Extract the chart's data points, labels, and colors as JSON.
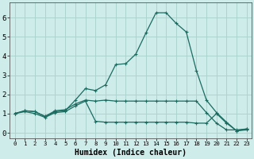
{
  "background_color": "#ceecea",
  "grid_color": "#aed4d0",
  "line_color": "#1a6b60",
  "xlabel": "Humidex (Indice chaleur)",
  "xlabel_fontsize": 7,
  "ytick_labels": [
    "0",
    "1",
    "2",
    "3",
    "4",
    "5",
    "6"
  ],
  "ytick_vals": [
    0,
    1,
    2,
    3,
    4,
    5,
    6
  ],
  "xtick_vals": [
    0,
    1,
    2,
    3,
    4,
    5,
    6,
    7,
    8,
    9,
    10,
    11,
    12,
    13,
    14,
    15,
    16,
    17,
    18,
    19,
    20,
    21,
    22,
    23
  ],
  "xlim": [
    -0.5,
    23.5
  ],
  "ylim": [
    -0.3,
    6.8
  ],
  "series": [
    [
      1.0,
      1.15,
      1.1,
      0.85,
      1.1,
      1.15,
      1.7,
      2.3,
      2.2,
      2.5,
      3.55,
      3.6,
      4.1,
      5.2,
      6.25,
      6.25,
      5.7,
      5.25,
      3.25,
      1.7,
      1.05,
      0.55,
      0.1,
      0.2
    ],
    [
      1.0,
      1.15,
      1.1,
      0.85,
      1.15,
      1.2,
      1.5,
      1.7,
      1.65,
      1.7,
      1.65,
      1.65,
      1.65,
      1.65,
      1.65,
      1.65,
      1.65,
      1.65,
      1.65,
      1.05,
      0.5,
      0.15,
      0.15,
      0.2
    ],
    [
      1.0,
      1.1,
      1.0,
      0.8,
      1.05,
      1.1,
      1.4,
      1.65,
      0.6,
      0.55,
      0.55,
      0.55,
      0.55,
      0.55,
      0.55,
      0.55,
      0.55,
      0.55,
      0.5,
      0.5,
      1.0,
      0.5,
      0.1,
      0.15
    ]
  ]
}
